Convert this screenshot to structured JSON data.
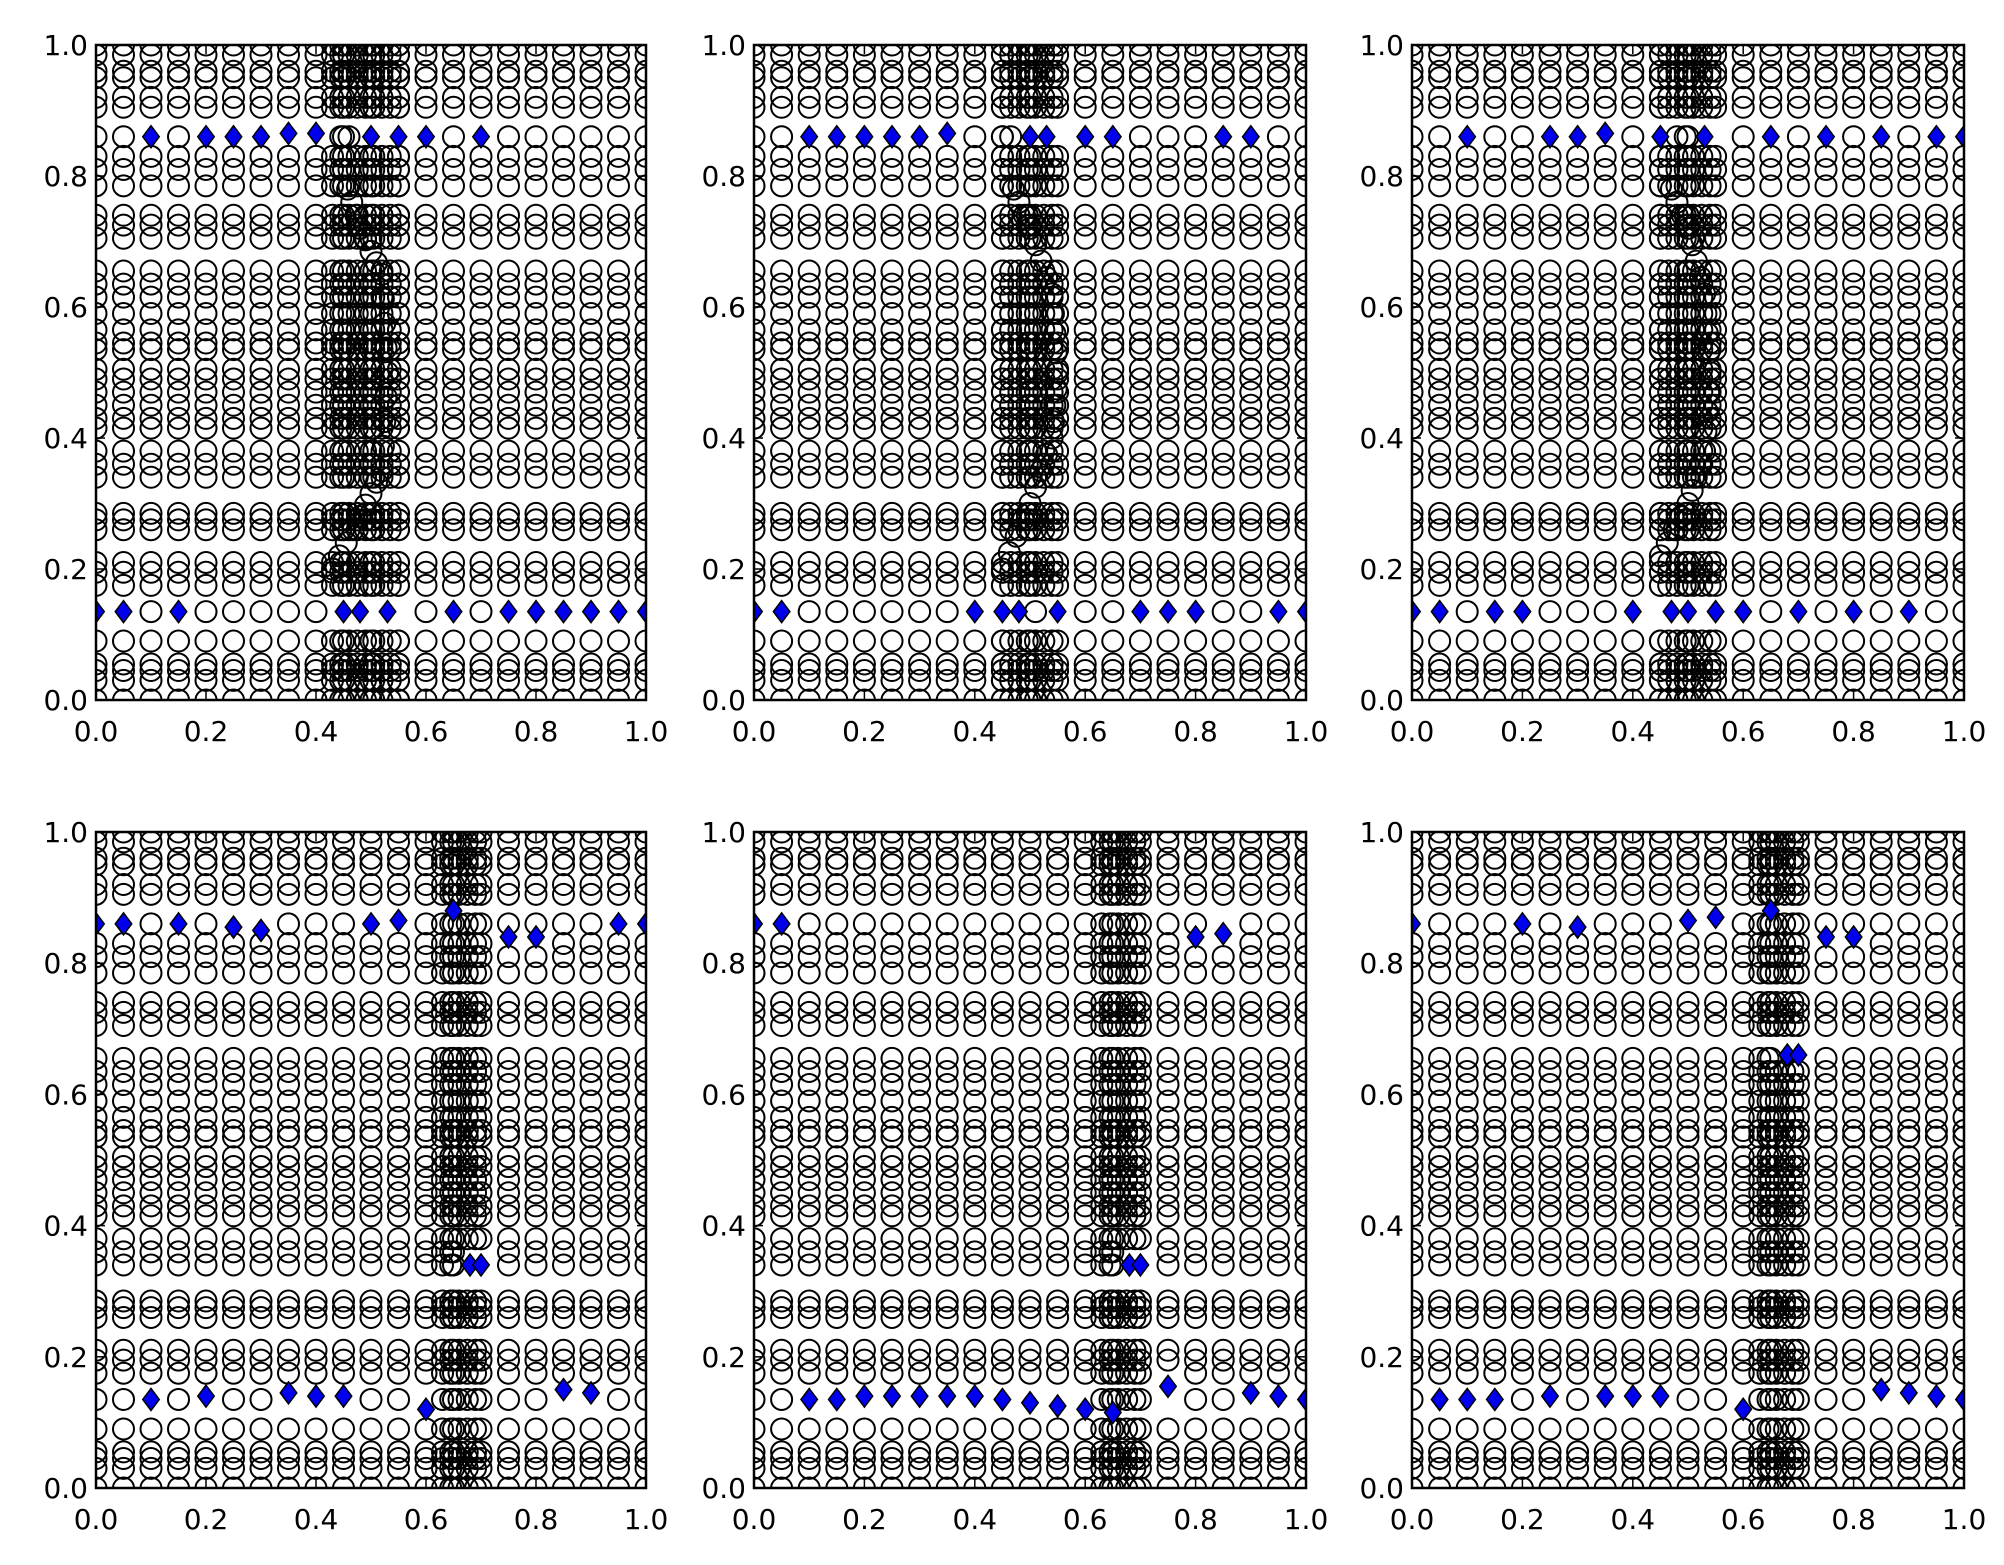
{
  "figure": {
    "layout": "2x3 grid of scatter panels"
  },
  "chart_data": [
    {
      "type": "scatter",
      "xlim": [
        0.0,
        1.0
      ],
      "ylim": [
        0.0,
        1.0
      ],
      "xticks": [
        "0.0",
        "0.2",
        "0.4",
        "0.6",
        "0.8",
        "1.0"
      ],
      "yticks": [
        "0.0",
        "0.2",
        "0.4",
        "0.6",
        "0.8",
        "1.0"
      ],
      "grid": false,
      "series": [
        {
          "marker": "open-circle",
          "color": "#000000",
          "pattern": {
            "x_focus": 0.5,
            "x_focus_zone": [
              0.43,
              0.55
            ],
            "curve": [
              [
                0.43,
                0.2
              ],
              [
                0.48,
                0.28
              ],
              [
                0.52,
                0.35
              ],
              [
                0.53,
                0.5
              ],
              [
                0.52,
                0.65
              ],
              [
                0.48,
                0.72
              ],
              [
                0.45,
                0.8
              ]
            ]
          }
        },
        {
          "marker": "diamond",
          "color": "#0000ee",
          "points": [
            [
              0.1,
              0.86
            ],
            [
              0.2,
              0.86
            ],
            [
              0.25,
              0.86
            ],
            [
              0.3,
              0.86
            ],
            [
              0.35,
              0.865
            ],
            [
              0.4,
              0.865
            ],
            [
              0.5,
              0.86
            ],
            [
              0.55,
              0.86
            ],
            [
              0.6,
              0.86
            ],
            [
              0.7,
              0.86
            ],
            [
              0.0,
              0.135
            ],
            [
              0.05,
              0.135
            ],
            [
              0.15,
              0.135
            ],
            [
              0.45,
              0.135
            ],
            [
              0.48,
              0.135
            ],
            [
              0.53,
              0.135
            ],
            [
              0.65,
              0.135
            ],
            [
              0.75,
              0.135
            ],
            [
              0.8,
              0.135
            ],
            [
              0.85,
              0.135
            ],
            [
              0.9,
              0.135
            ],
            [
              0.95,
              0.135
            ],
            [
              1.0,
              0.135
            ]
          ]
        }
      ]
    },
    {
      "type": "scatter",
      "xlim": [
        0.0,
        1.0
      ],
      "ylim": [
        0.0,
        1.0
      ],
      "xticks": [
        "0.0",
        "0.2",
        "0.4",
        "0.6",
        "0.8",
        "1.0"
      ],
      "yticks": [
        "0.0",
        "0.2",
        "0.4",
        "0.6",
        "0.8",
        "1.0"
      ],
      "grid": false,
      "series": [
        {
          "marker": "open-circle",
          "color": "#000000",
          "pattern": {
            "x_focus": 0.5,
            "x_focus_zone": [
              0.45,
              0.55
            ],
            "curve": [
              [
                0.45,
                0.2
              ],
              [
                0.5,
                0.3
              ],
              [
                0.54,
                0.4
              ],
              [
                0.55,
                0.5
              ],
              [
                0.54,
                0.62
              ],
              [
                0.5,
                0.72
              ],
              [
                0.46,
                0.8
              ]
            ]
          }
        },
        {
          "marker": "diamond",
          "color": "#0000ee",
          "points": [
            [
              0.1,
              0.86
            ],
            [
              0.15,
              0.86
            ],
            [
              0.2,
              0.86
            ],
            [
              0.25,
              0.86
            ],
            [
              0.3,
              0.86
            ],
            [
              0.35,
              0.865
            ],
            [
              0.5,
              0.86
            ],
            [
              0.53,
              0.86
            ],
            [
              0.6,
              0.86
            ],
            [
              0.65,
              0.86
            ],
            [
              0.85,
              0.86
            ],
            [
              0.9,
              0.86
            ],
            [
              0.0,
              0.135
            ],
            [
              0.05,
              0.135
            ],
            [
              0.4,
              0.135
            ],
            [
              0.45,
              0.135
            ],
            [
              0.48,
              0.135
            ],
            [
              0.55,
              0.135
            ],
            [
              0.7,
              0.135
            ],
            [
              0.75,
              0.135
            ],
            [
              0.8,
              0.135
            ],
            [
              0.95,
              0.135
            ],
            [
              1.0,
              0.135
            ]
          ]
        }
      ]
    },
    {
      "type": "scatter",
      "xlim": [
        0.0,
        1.0
      ],
      "ylim": [
        0.0,
        1.0
      ],
      "xticks": [
        "0.0",
        "0.2",
        "0.4",
        "0.6",
        "0.8",
        "1.0"
      ],
      "yticks": [
        "0.0",
        "0.2",
        "0.4",
        "0.6",
        "0.8",
        "1.0"
      ],
      "grid": false,
      "series": [
        {
          "marker": "open-circle",
          "color": "#000000",
          "pattern": {
            "x_focus": 0.5,
            "x_focus_zone": [
              0.45,
              0.55
            ],
            "curve": [
              [
                0.45,
                0.22
              ],
              [
                0.5,
                0.3
              ],
              [
                0.53,
                0.38
              ],
              [
                0.54,
                0.5
              ],
              [
                0.53,
                0.62
              ],
              [
                0.5,
                0.72
              ],
              [
                0.46,
                0.8
              ]
            ]
          }
        },
        {
          "marker": "diamond",
          "color": "#0000ee",
          "points": [
            [
              0.1,
              0.86
            ],
            [
              0.25,
              0.86
            ],
            [
              0.3,
              0.86
            ],
            [
              0.35,
              0.865
            ],
            [
              0.45,
              0.86
            ],
            [
              0.53,
              0.86
            ],
            [
              0.65,
              0.86
            ],
            [
              0.75,
              0.86
            ],
            [
              0.85,
              0.86
            ],
            [
              0.95,
              0.86
            ],
            [
              1.0,
              0.86
            ],
            [
              0.0,
              0.135
            ],
            [
              0.05,
              0.135
            ],
            [
              0.15,
              0.135
            ],
            [
              0.2,
              0.135
            ],
            [
              0.4,
              0.135
            ],
            [
              0.47,
              0.135
            ],
            [
              0.5,
              0.135
            ],
            [
              0.55,
              0.135
            ],
            [
              0.6,
              0.135
            ],
            [
              0.7,
              0.135
            ],
            [
              0.8,
              0.135
            ],
            [
              0.9,
              0.135
            ]
          ]
        }
      ]
    },
    {
      "type": "scatter",
      "xlim": [
        0.0,
        1.0
      ],
      "ylim": [
        0.0,
        1.0
      ],
      "xticks": [
        "0.0",
        "0.2",
        "0.4",
        "0.6",
        "0.8",
        "1.0"
      ],
      "yticks": [
        "0.0",
        "0.2",
        "0.4",
        "0.6",
        "0.8",
        "1.0"
      ],
      "grid": false,
      "series": [
        {
          "marker": "open-circle",
          "color": "#000000",
          "pattern": {
            "x_focus": 0.67,
            "x_focus_zone": [
              0.63,
              0.7
            ],
            "curve": []
          }
        },
        {
          "marker": "diamond",
          "color": "#0000ee",
          "points": [
            [
              0.0,
              0.86
            ],
            [
              0.05,
              0.86
            ],
            [
              0.15,
              0.86
            ],
            [
              0.25,
              0.855
            ],
            [
              0.3,
              0.85
            ],
            [
              0.5,
              0.86
            ],
            [
              0.55,
              0.865
            ],
            [
              0.65,
              0.88
            ],
            [
              0.75,
              0.84
            ],
            [
              0.8,
              0.84
            ],
            [
              0.95,
              0.86
            ],
            [
              1.0,
              0.86
            ],
            [
              0.68,
              0.34
            ],
            [
              0.7,
              0.34
            ],
            [
              0.1,
              0.135
            ],
            [
              0.2,
              0.14
            ],
            [
              0.35,
              0.145
            ],
            [
              0.4,
              0.14
            ],
            [
              0.45,
              0.14
            ],
            [
              0.6,
              0.12
            ],
            [
              0.85,
              0.15
            ],
            [
              0.9,
              0.145
            ]
          ]
        }
      ]
    },
    {
      "type": "scatter",
      "xlim": [
        0.0,
        1.0
      ],
      "ylim": [
        0.0,
        1.0
      ],
      "xticks": [
        "0.0",
        "0.2",
        "0.4",
        "0.6",
        "0.8",
        "1.0"
      ],
      "yticks": [
        "0.0",
        "0.2",
        "0.4",
        "0.6",
        "0.8",
        "1.0"
      ],
      "grid": false,
      "series": [
        {
          "marker": "open-circle",
          "color": "#000000",
          "pattern": {
            "x_focus": 0.67,
            "x_focus_zone": [
              0.63,
              0.7
            ],
            "curve": []
          }
        },
        {
          "marker": "diamond",
          "color": "#0000ee",
          "points": [
            [
              0.0,
              0.86
            ],
            [
              0.05,
              0.86
            ],
            [
              0.8,
              0.84
            ],
            [
              0.85,
              0.845
            ],
            [
              0.68,
              0.34
            ],
            [
              0.7,
              0.34
            ],
            [
              0.1,
              0.135
            ],
            [
              0.15,
              0.135
            ],
            [
              0.2,
              0.14
            ],
            [
              0.25,
              0.14
            ],
            [
              0.3,
              0.14
            ],
            [
              0.35,
              0.14
            ],
            [
              0.4,
              0.14
            ],
            [
              0.45,
              0.135
            ],
            [
              0.5,
              0.13
            ],
            [
              0.55,
              0.125
            ],
            [
              0.6,
              0.12
            ],
            [
              0.65,
              0.115
            ],
            [
              0.75,
              0.155
            ],
            [
              0.9,
              0.145
            ],
            [
              0.95,
              0.14
            ],
            [
              1.0,
              0.135
            ]
          ]
        }
      ]
    },
    {
      "type": "scatter",
      "xlim": [
        0.0,
        1.0
      ],
      "ylim": [
        0.0,
        1.0
      ],
      "xticks": [
        "0.0",
        "0.2",
        "0.4",
        "0.6",
        "0.8",
        "1.0"
      ],
      "yticks": [
        "0.0",
        "0.2",
        "0.4",
        "0.6",
        "0.8",
        "1.0"
      ],
      "grid": false,
      "series": [
        {
          "marker": "open-circle",
          "color": "#000000",
          "pattern": {
            "x_focus": 0.67,
            "x_focus_zone": [
              0.63,
              0.7
            ],
            "curve": []
          }
        },
        {
          "marker": "diamond",
          "color": "#0000ee",
          "points": [
            [
              0.0,
              0.86
            ],
            [
              0.2,
              0.86
            ],
            [
              0.3,
              0.855
            ],
            [
              0.5,
              0.865
            ],
            [
              0.55,
              0.87
            ],
            [
              0.65,
              0.88
            ],
            [
              0.75,
              0.84
            ],
            [
              0.8,
              0.84
            ],
            [
              0.68,
              0.66
            ],
            [
              0.7,
              0.66
            ],
            [
              0.05,
              0.135
            ],
            [
              0.1,
              0.135
            ],
            [
              0.15,
              0.135
            ],
            [
              0.25,
              0.14
            ],
            [
              0.35,
              0.14
            ],
            [
              0.4,
              0.14
            ],
            [
              0.45,
              0.14
            ],
            [
              0.6,
              0.12
            ],
            [
              0.85,
              0.15
            ],
            [
              0.9,
              0.145
            ],
            [
              0.95,
              0.14
            ],
            [
              1.0,
              0.135
            ]
          ]
        }
      ]
    }
  ]
}
